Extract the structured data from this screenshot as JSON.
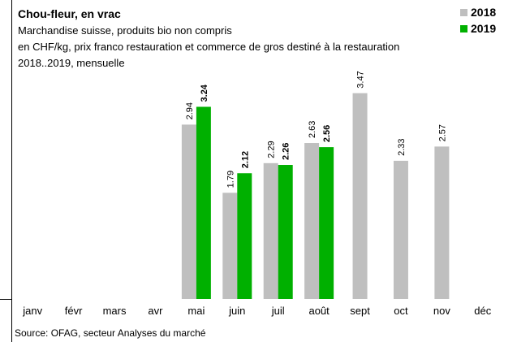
{
  "chart_data": {
    "type": "bar",
    "title": "Chou-fleur, en vrac",
    "subtitle": [
      "Marchandise suisse, produits bio non compris",
      "en CHF/kg,  prix franco restauration et commerce de gros destiné à la restauration",
      "2018..2019, mensuelle"
    ],
    "categories": [
      "janv",
      "févr",
      "mars",
      "avr",
      "mai",
      "juin",
      "juil",
      "août",
      "sept",
      "oct",
      "nov",
      "déc"
    ],
    "series": [
      {
        "name": "2018",
        "color": "#bfbfbf",
        "values": [
          null,
          null,
          null,
          null,
          2.94,
          1.79,
          2.29,
          2.63,
          3.47,
          2.33,
          2.57,
          null
        ]
      },
      {
        "name": "2019",
        "color": "#00b000",
        "values": [
          null,
          null,
          null,
          null,
          3.24,
          2.12,
          2.26,
          2.56,
          null,
          null,
          null,
          null
        ]
      }
    ],
    "legend": "top-right",
    "source": "Source:  OFAG, secteur Analyses du marché"
  }
}
